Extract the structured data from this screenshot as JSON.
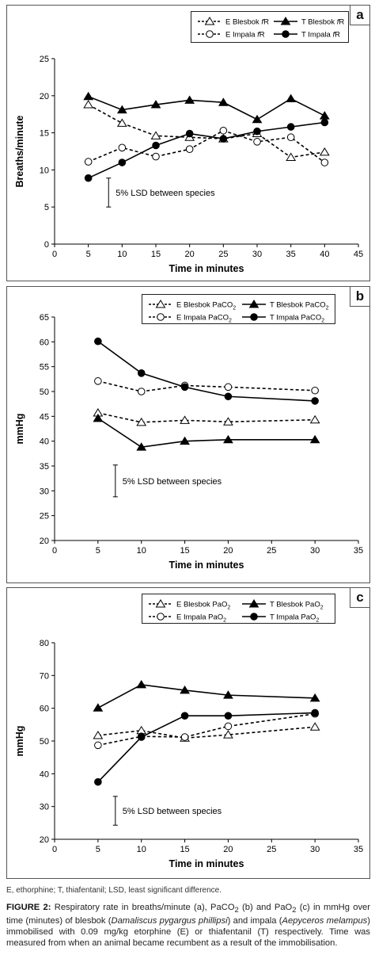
{
  "chart_data": [
    {
      "type": "line",
      "panel_label": "a",
      "xlabel": "Time in minutes",
      "ylabel": "Breaths/minute",
      "xlim": [
        0,
        45
      ],
      "ylim": [
        0,
        25
      ],
      "x_ticks": [
        "0",
        "5",
        "10",
        "15",
        "20",
        "25",
        "30",
        "35",
        "40",
        "45"
      ],
      "y_ticks": [
        "0",
        "5",
        "10",
        "15",
        "20",
        "25"
      ],
      "x": [
        5,
        10,
        15,
        20,
        25,
        30,
        35,
        40
      ],
      "series": [
        {
          "name": "E Blesbok fR",
          "marker": "triangle-open",
          "line": "dashed",
          "values": [
            18.8,
            16.3,
            14.6,
            14.4,
            14.2,
            14.9,
            11.7,
            12.4
          ]
        },
        {
          "name": "T Blesbok fR",
          "marker": "triangle-filled",
          "line": "solid",
          "values": [
            19.9,
            18.1,
            18.8,
            19.4,
            19.1,
            16.8,
            19.6,
            17.3
          ]
        },
        {
          "name": "E Impala fR",
          "marker": "circle-open",
          "line": "dashed",
          "values": [
            11.1,
            13.0,
            11.8,
            12.8,
            15.3,
            13.8,
            14.4,
            11.0
          ]
        },
        {
          "name": "T Impala fR",
          "marker": "circle-filled",
          "line": "solid",
          "values": [
            8.9,
            11.0,
            13.3,
            14.9,
            14.2,
            15.2,
            15.8,
            16.4
          ]
        }
      ],
      "lsd": {
        "x": 8,
        "low": 5.0,
        "high": 8.9,
        "label": "5% LSD between species"
      },
      "legend_position": "top-right"
    },
    {
      "type": "line",
      "panel_label": "b",
      "xlabel": "Time in minutes",
      "ylabel": "mmHg",
      "xlim": [
        0,
        35
      ],
      "ylim": [
        20,
        65
      ],
      "x_ticks": [
        "0",
        "5",
        "10",
        "15",
        "20",
        "25",
        "30",
        "35"
      ],
      "y_ticks": [
        "20",
        "25",
        "30",
        "35",
        "40",
        "45",
        "50",
        "55",
        "60",
        "65"
      ],
      "x": [
        5,
        10,
        15,
        20,
        30
      ],
      "series": [
        {
          "name": "E Blesbok PaCO2",
          "marker": "triangle-open",
          "line": "dashed",
          "values": [
            45.7,
            43.8,
            44.2,
            43.9,
            44.3
          ]
        },
        {
          "name": "T Blesbok PaCO2",
          "marker": "triangle-filled",
          "line": "solid",
          "values": [
            44.6,
            38.8,
            40.0,
            40.3,
            40.3
          ]
        },
        {
          "name": "E Impala PaCO2",
          "marker": "circle-open",
          "line": "dashed",
          "values": [
            52.1,
            50.0,
            51.2,
            50.9,
            50.2
          ]
        },
        {
          "name": "T Impala PaCO2",
          "marker": "circle-filled",
          "line": "solid",
          "values": [
            60.1,
            53.7,
            50.9,
            49.0,
            48.1
          ]
        }
      ],
      "lsd": {
        "x": 7,
        "low": 28.8,
        "high": 35.2,
        "label": "5% LSD between species"
      },
      "legend_position": "top"
    },
    {
      "type": "line",
      "panel_label": "c",
      "xlabel": "Time in minutes",
      "ylabel": "mmHg",
      "xlim": [
        0,
        35
      ],
      "ylim": [
        20,
        80
      ],
      "x_ticks": [
        "0",
        "5",
        "10",
        "15",
        "20",
        "25",
        "30",
        "35"
      ],
      "y_ticks": [
        "20",
        "30",
        "40",
        "50",
        "60",
        "70",
        "80"
      ],
      "x": [
        5,
        10,
        15,
        20,
        30
      ],
      "series": [
        {
          "name": "E Blesbok PaO2",
          "marker": "triangle-open",
          "line": "dashed",
          "values": [
            51.7,
            53.2,
            50.9,
            51.9,
            54.3
          ]
        },
        {
          "name": "T Blesbok PaO2",
          "marker": "triangle-filled",
          "line": "solid",
          "values": [
            60.1,
            67.2,
            65.5,
            64.0,
            63.1
          ]
        },
        {
          "name": "E Impala PaO2",
          "marker": "circle-open",
          "line": "dashed",
          "values": [
            48.7,
            51.4,
            51.2,
            54.5,
            58.3
          ]
        },
        {
          "name": "T Impala PaO2",
          "marker": "circle-filled",
          "line": "solid",
          "values": [
            37.5,
            51.2,
            57.7,
            57.7,
            58.6
          ]
        }
      ],
      "lsd": {
        "x": 7,
        "low": 24.3,
        "high": 33.1,
        "label": "5% LSD between species"
      },
      "legend_position": "top"
    }
  ],
  "legends": {
    "a": [
      {
        "prefix": "E Blesbok ",
        "var": "f",
        "suffix": "R"
      },
      {
        "prefix": "T Blesbok ",
        "var": "f",
        "suffix": "R"
      },
      {
        "prefix": "E Impala ",
        "var": "f",
        "suffix": "R"
      },
      {
        "prefix": "T Impala ",
        "var": "f",
        "suffix": "R"
      }
    ],
    "b": [
      {
        "prefix": "E Blesbok PaCO",
        "sub": "2"
      },
      {
        "prefix": "T Blesbok PaCO",
        "sub": "2"
      },
      {
        "prefix": "E Impala PaCO",
        "sub": "2"
      },
      {
        "prefix": "T Impala PaCO",
        "sub": "2"
      }
    ],
    "c": [
      {
        "prefix": "E Blesbok PaO",
        "sub": "2"
      },
      {
        "prefix": "T Blesbok PaO",
        "sub": "2"
      },
      {
        "prefix": "E Impala PaO",
        "sub": "2"
      },
      {
        "prefix": "T Impala PaO",
        "sub": "2"
      }
    ]
  },
  "footnote": "E, ethorphine; T, thiafentanil; LSD, least significant difference.",
  "caption": {
    "label": "FIGURE 2:",
    "t1": " Respiratory rate in breaths/minute (a), PaCO",
    "t2": " (b) and PaO",
    "t3": " (c) in mmHg over time (minutes) of blesbok (",
    "species1": "Damaliscus pygargus phillipsi",
    "t4": ") and impala (",
    "species2": "Aepyceros melampus",
    "t5": ") immobilised with 0.09 mg/kg etorphine (E) or thiafentanil (T) respectively. Time was measured from when an animal became recumbent as a result of the immobilisation.",
    "sub": "2"
  }
}
